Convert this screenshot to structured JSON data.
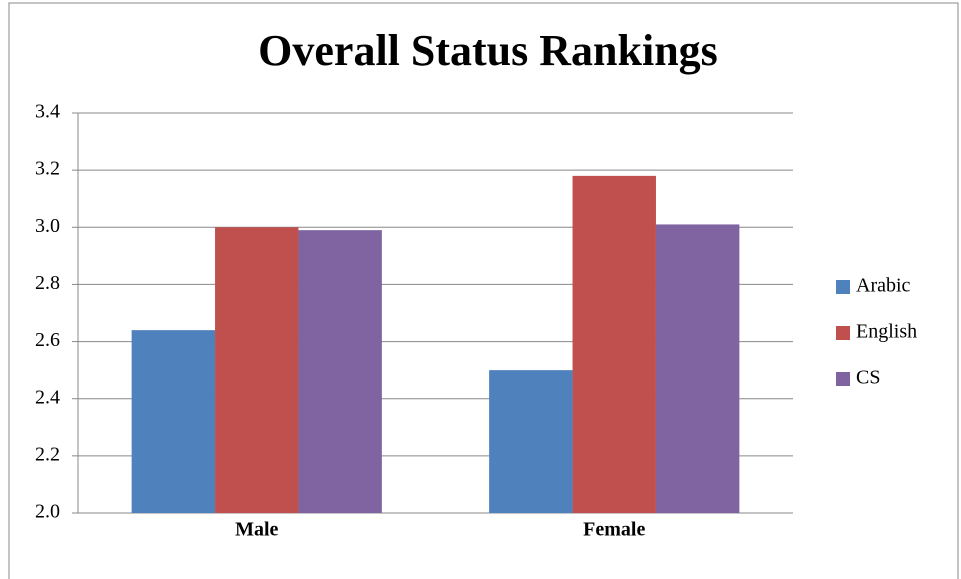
{
  "chart_data": {
    "type": "bar",
    "title": "Overall Status Rankings",
    "categories": [
      "Male",
      "Female"
    ],
    "series": [
      {
        "name": "Arabic",
        "color": "#4f81bd",
        "values": [
          2.64,
          2.5
        ]
      },
      {
        "name": "English",
        "color": "#c0504d",
        "values": [
          3.0,
          3.18
        ]
      },
      {
        "name": "CS",
        "color": "#8064a2",
        "values": [
          2.99,
          3.01
        ]
      }
    ],
    "ylim": [
      2,
      3.4
    ],
    "yticks": [
      {
        "value": 2,
        "label": "2.0"
      },
      2.2,
      2.4,
      2.6,
      2.8,
      {
        "value": 3,
        "label": "3.0"
      },
      3.2,
      3.4
    ],
    "grid": true,
    "legend": "right"
  }
}
